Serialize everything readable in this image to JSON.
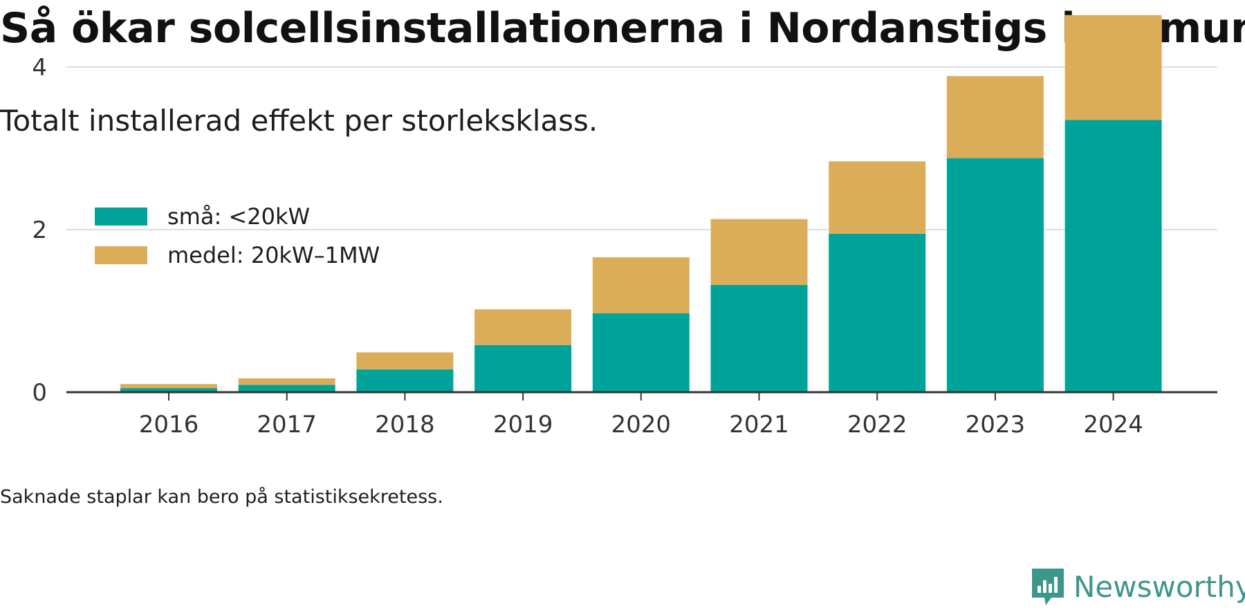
{
  "title": "Så ökar solcellsinstallationerna i Nordanstigs kommun",
  "subtitle": "Totalt installerad effekt per storleksklass.",
  "footnote": "Saknade staplar kan bero på statistiksekretess.",
  "brand": "Newsworthy",
  "brand_logo_icon": "newsworthy-logo-icon",
  "colors": {
    "sma": "#00a39a",
    "medel": "#dcad59",
    "grid": "#dadde3",
    "axis": "#333333",
    "brand": "#3d968c"
  },
  "chart_data": {
    "type": "bar",
    "stacked": true,
    "categories": [
      "2016",
      "2017",
      "2018",
      "2019",
      "2020",
      "2021",
      "2022",
      "2023",
      "2024"
    ],
    "series": [
      {
        "name": "små: <20kW",
        "values": [
          0.05,
          0.09,
          0.28,
          0.58,
          0.97,
          1.32,
          1.95,
          2.88,
          3.35
        ]
      },
      {
        "name": "medel: 20kW–1MW",
        "values": [
          0.05,
          0.08,
          0.21,
          0.44,
          0.69,
          0.81,
          0.89,
          1.01,
          1.29
        ]
      }
    ],
    "ylim": [
      0,
      4.6
    ],
    "yticks": [
      0,
      2,
      4
    ],
    "grid": true,
    "legend_position": "top-left",
    "xlabel": "",
    "ylabel": ""
  }
}
